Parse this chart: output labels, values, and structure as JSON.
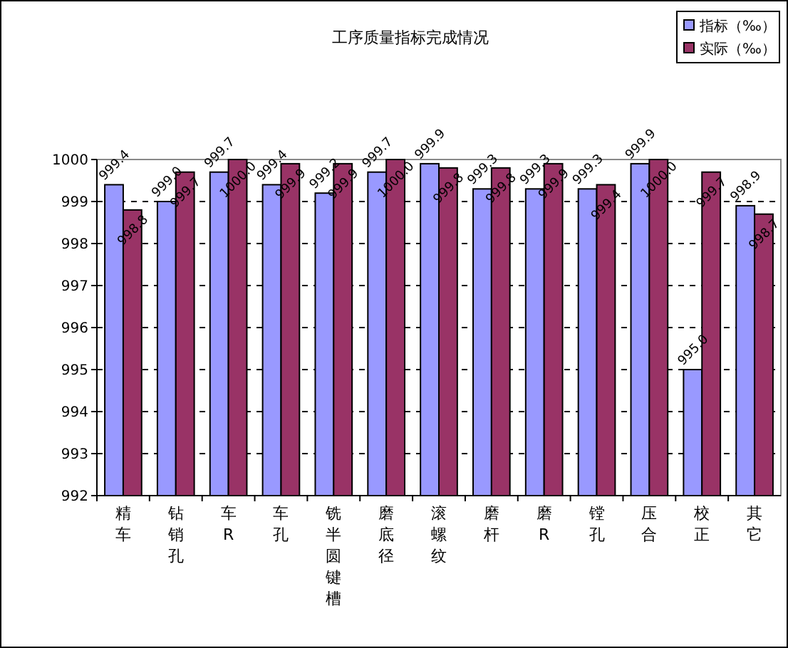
{
  "chart_data": {
    "type": "bar",
    "title": "工序质量指标完成情况",
    "categories": [
      "精车",
      "钻销孔",
      "车R",
      "车孔",
      "铣半圆键槽",
      "磨底径",
      "滚螺纹",
      "磨杆",
      "磨R",
      "镗孔",
      "压合",
      "校正",
      "其它"
    ],
    "series": [
      {
        "name": "指标（‰）",
        "color": "#9999ff",
        "values": [
          999.4,
          999.0,
          999.7,
          999.4,
          999.2,
          999.7,
          999.9,
          999.3,
          999.3,
          999.3,
          999.9,
          995.0,
          998.9
        ],
        "value_labels": [
          "999.4",
          "999.0",
          "999.7",
          "999.4",
          "999.2",
          "999.7",
          "999.9",
          "999.3",
          "999.3",
          "999.3",
          "999.9",
          "995.0",
          "998.9"
        ]
      },
      {
        "name": "实际（‰）",
        "color": "#993366",
        "values": [
          998.8,
          999.7,
          1000.0,
          999.9,
          999.9,
          1000.0,
          999.8,
          999.8,
          999.9,
          999.4,
          1000.0,
          999.7,
          998.7
        ],
        "value_labels": [
          "998.8",
          "999.7",
          "1000.0",
          "999.9",
          "999.9",
          "1000.0",
          "999.8",
          "999.8",
          "999.9",
          "999.4",
          "1000.0",
          "999.7",
          "998.7"
        ]
      }
    ],
    "ylim": [
      992,
      1000
    ],
    "yticks": [
      992,
      993,
      994,
      995,
      996,
      997,
      998,
      999,
      1000
    ],
    "grid": "y",
    "legend": "top right"
  }
}
